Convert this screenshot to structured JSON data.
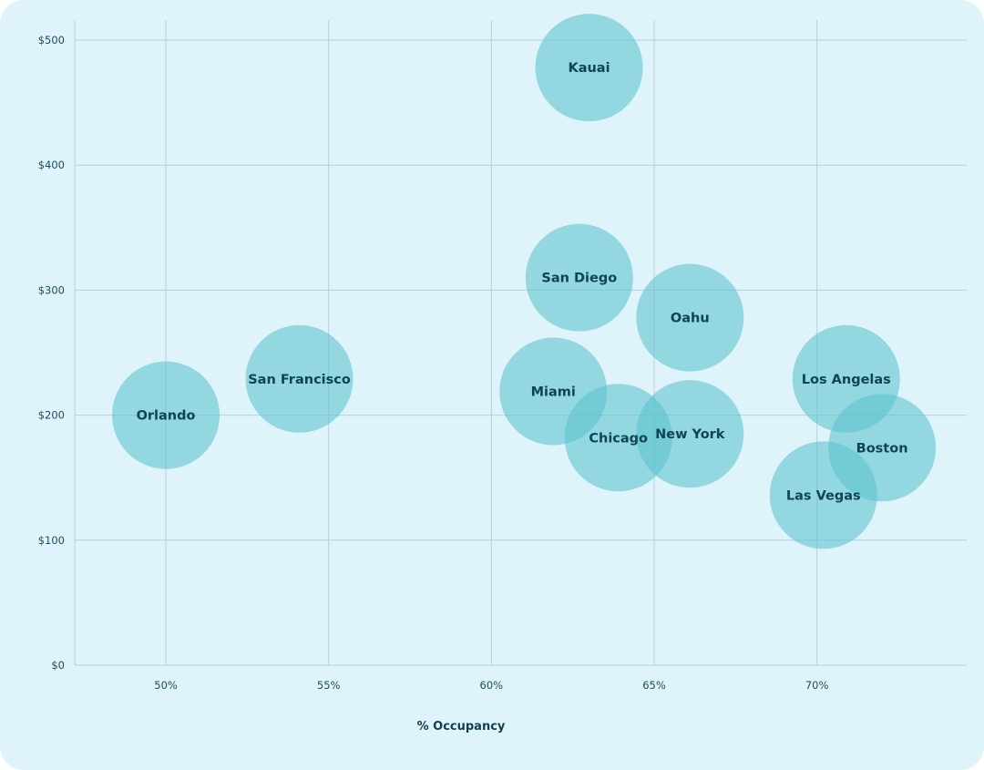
{
  "chart_data": {
    "type": "scatter",
    "title": "",
    "xlabel": "% Occupancy",
    "ylabel": "",
    "xlim": [
      47.2,
      74.6
    ],
    "ylim": [
      0,
      500
    ],
    "x_ticks": [
      {
        "value": 50,
        "label": "50%"
      },
      {
        "value": 55,
        "label": "55%"
      },
      {
        "value": 60,
        "label": "60%"
      },
      {
        "value": 65,
        "label": "65%"
      },
      {
        "value": 70,
        "label": "70%"
      }
    ],
    "y_ticks": [
      {
        "value": 0,
        "label": "$0"
      },
      {
        "value": 100,
        "label": "$100"
      },
      {
        "value": 200,
        "label": "$200"
      },
      {
        "value": 300,
        "label": "$300"
      },
      {
        "value": 400,
        "label": "$400"
      },
      {
        "value": 500,
        "label": "$500"
      }
    ],
    "grid": true,
    "bubble_color": "#5cc3cf",
    "points": [
      {
        "label": "Kauai",
        "x": 63.0,
        "y": 478
      },
      {
        "label": "San Diego",
        "x": 62.7,
        "y": 310
      },
      {
        "label": "Oahu",
        "x": 66.1,
        "y": 278
      },
      {
        "label": "San Francisco",
        "x": 54.1,
        "y": 229
      },
      {
        "label": "Orlando",
        "x": 50.0,
        "y": 200
      },
      {
        "label": "Miami",
        "x": 61.9,
        "y": 219
      },
      {
        "label": "Chicago",
        "x": 63.9,
        "y": 182
      },
      {
        "label": "New York",
        "x": 66.1,
        "y": 185
      },
      {
        "label": "Los Angelas",
        "x": 70.9,
        "y": 229
      },
      {
        "label": "Boston",
        "x": 72.0,
        "y": 174
      },
      {
        "label": "Las Vegas",
        "x": 70.2,
        "y": 136
      }
    ]
  }
}
